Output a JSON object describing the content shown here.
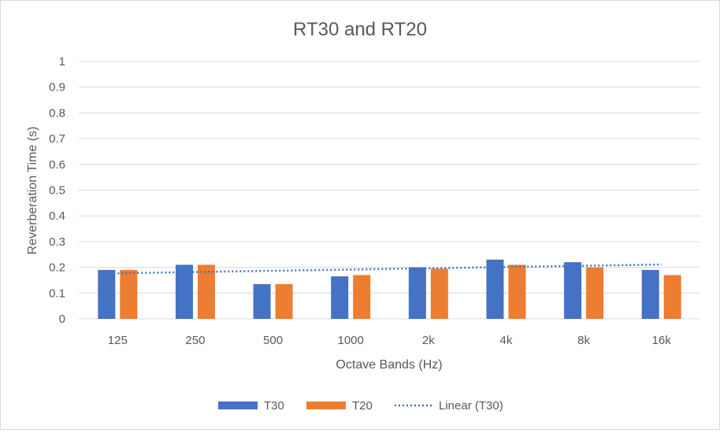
{
  "chart_data": {
    "type": "bar",
    "title": "RT30 and RT20",
    "xlabel": "Octave Bands (Hz)",
    "ylabel": "Reverberation Time (s)",
    "ylim": [
      0,
      1
    ],
    "yticks": [
      "0",
      "0.1",
      "0.2",
      "0.3",
      "0.4",
      "0.5",
      "0.6",
      "0.7",
      "0.8",
      "0.9",
      "1"
    ],
    "categories": [
      "125",
      "250",
      "500",
      "1000",
      "2k",
      "4k",
      "8k",
      "16k"
    ],
    "series": [
      {
        "name": "T30",
        "color": "#4472c4",
        "values": [
          0.19,
          0.21,
          0.135,
          0.165,
          0.2,
          0.23,
          0.22,
          0.19
        ]
      },
      {
        "name": "T20",
        "color": "#ed7d31",
        "values": [
          0.19,
          0.21,
          0.135,
          0.17,
          0.195,
          0.21,
          0.2,
          0.17
        ]
      }
    ],
    "trendline": {
      "name": "Linear (T30)",
      "series": "T30",
      "style": "dotted",
      "color": "#4472c4",
      "start": 0.177,
      "end": 0.211
    },
    "grid": true,
    "legend": "bottom"
  }
}
